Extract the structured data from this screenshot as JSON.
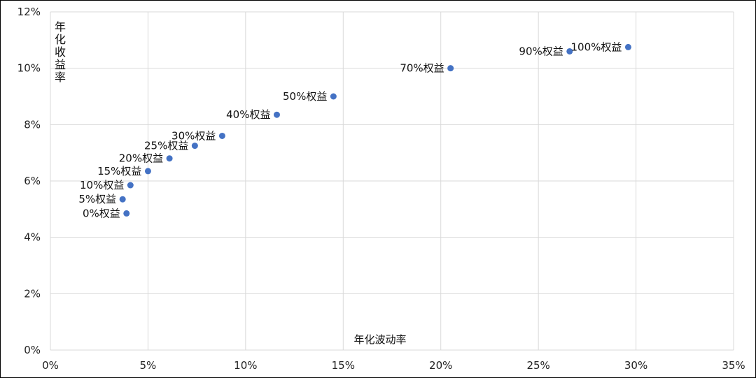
{
  "chart_data": {
    "type": "scatter",
    "xlabel": "年化波动率",
    "ylabel": "年化收益率",
    "xlim": [
      0,
      35
    ],
    "ylim": [
      0,
      12
    ],
    "x_ticks": [
      0,
      5,
      10,
      15,
      20,
      25,
      30,
      35
    ],
    "y_ticks": [
      0,
      2,
      4,
      6,
      8,
      10,
      12
    ],
    "x_tick_labels": [
      "0%",
      "5%",
      "10%",
      "15%",
      "20%",
      "25%",
      "30%",
      "35%"
    ],
    "y_tick_labels": [
      "0%",
      "2%",
      "4%",
      "6%",
      "8%",
      "10%",
      "12%"
    ],
    "grid": true,
    "marker_color": "#4472C4",
    "points": [
      {
        "label": "0%权益",
        "x": 3.9,
        "y": 4.85,
        "label_side": "left"
      },
      {
        "label": "5%权益",
        "x": 3.7,
        "y": 5.35,
        "label_side": "left"
      },
      {
        "label": "10%权益",
        "x": 4.1,
        "y": 5.85,
        "label_side": "left"
      },
      {
        "label": "15%权益",
        "x": 5.0,
        "y": 6.35,
        "label_side": "left"
      },
      {
        "label": "20%权益",
        "x": 6.1,
        "y": 6.8,
        "label_side": "left"
      },
      {
        "label": "25%权益",
        "x": 7.4,
        "y": 7.25,
        "label_side": "left"
      },
      {
        "label": "30%权益",
        "x": 8.8,
        "y": 7.6,
        "label_side": "left"
      },
      {
        "label": "40%权益",
        "x": 11.6,
        "y": 8.35,
        "label_side": "left"
      },
      {
        "label": "50%权益",
        "x": 14.5,
        "y": 9.0,
        "label_side": "left"
      },
      {
        "label": "70%权益",
        "x": 20.5,
        "y": 10.0,
        "label_side": "left"
      },
      {
        "label": "90%权益",
        "x": 26.6,
        "y": 10.6,
        "label_side": "left"
      },
      {
        "label": "100%权益",
        "x": 29.6,
        "y": 10.75,
        "label_side": "left"
      }
    ]
  }
}
